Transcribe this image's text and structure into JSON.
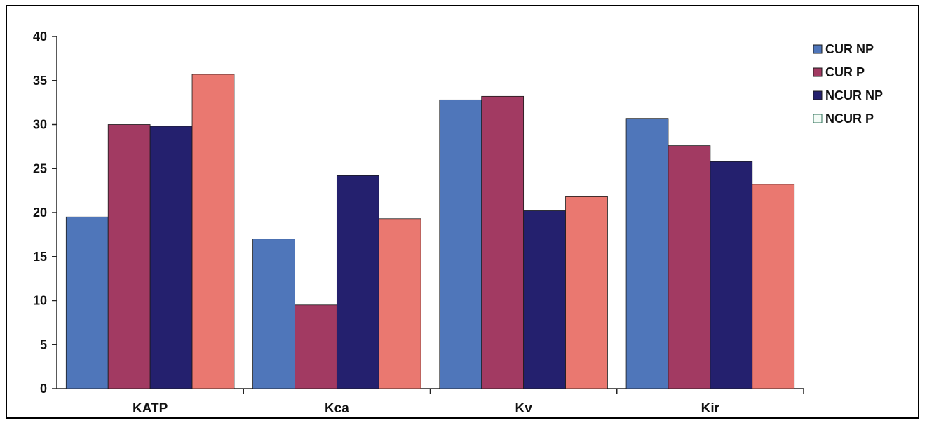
{
  "chart_data": {
    "type": "bar",
    "categories": [
      "KATP",
      "Kca",
      "Kv",
      "Kir"
    ],
    "series": [
      {
        "name": "CUR NP",
        "color": "#4f76ba",
        "values": [
          19.5,
          17.0,
          32.8,
          30.7
        ]
      },
      {
        "name": "CUR P",
        "color": "#a23a62",
        "values": [
          30.0,
          9.5,
          33.2,
          27.6
        ]
      },
      {
        "name": "NCUR NP",
        "color": "#24206e",
        "values": [
          29.8,
          24.2,
          20.2,
          25.8
        ]
      },
      {
        "name": "NCUR P",
        "color": "#ea7870",
        "values": [
          35.7,
          19.3,
          21.8,
          23.2
        ]
      }
    ],
    "yticks": [
      0,
      5,
      10,
      15,
      20,
      25,
      30,
      35,
      40
    ],
    "ylim": [
      0,
      40
    ],
    "grid": false,
    "legend": "right",
    "title": "",
    "xlabel": "",
    "ylabel": ""
  }
}
